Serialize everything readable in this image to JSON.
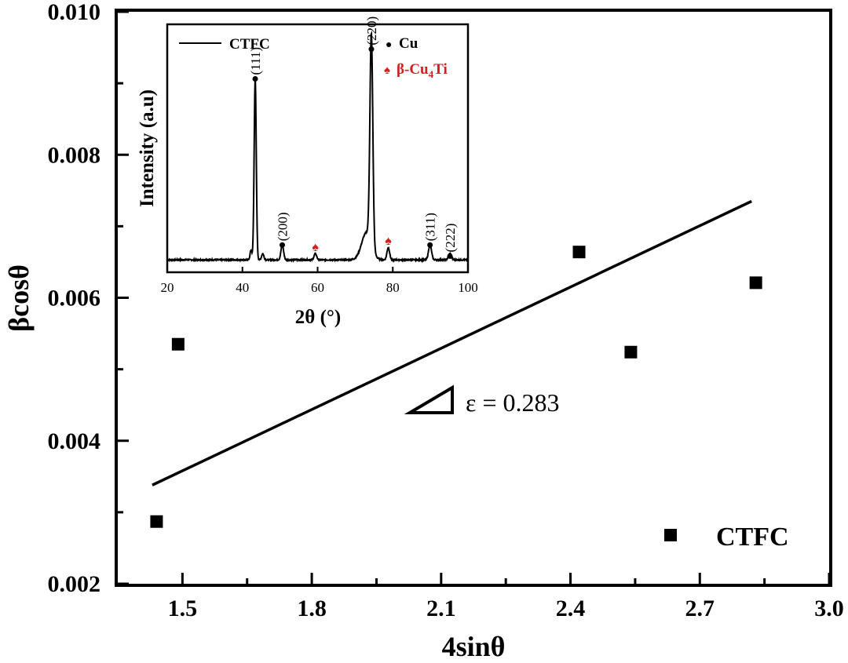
{
  "chart_data": [
    {
      "type": "scatter",
      "title": "",
      "xlabel": "4sinθ",
      "ylabel": "βcosθ",
      "xlim": [
        1.35,
        3.0
      ],
      "ylim": [
        0.002,
        0.01
      ],
      "xticks": [
        1.5,
        1.8,
        2.1,
        2.4,
        2.7,
        3.0
      ],
      "xtick_labels": [
        "1.5",
        "1.8",
        "2.1",
        "2.4",
        "2.7",
        "3.0"
      ],
      "yticks": [
        0.002,
        0.004,
        0.006,
        0.008,
        0.01
      ],
      "ytick_labels": [
        "0.002",
        "0.004",
        "0.006",
        "0.008",
        "0.010"
      ],
      "series": [
        {
          "name": "CTFC",
          "marker": "square",
          "points": [
            {
              "x": 1.44,
              "y": 0.00287
            },
            {
              "x": 1.49,
              "y": 0.00535
            },
            {
              "x": 2.42,
              "y": 0.00664
            },
            {
              "x": 2.54,
              "y": 0.00524
            },
            {
              "x": 2.83,
              "y": 0.00621
            }
          ]
        }
      ],
      "fit_line": {
        "x": [
          1.43,
          2.82
        ],
        "y": [
          0.00338,
          0.00735
        ]
      },
      "annotation": "ε = 0.283",
      "legend": {
        "label": "CTFC",
        "position": "bottom-right"
      }
    },
    {
      "type": "line",
      "role": "inset",
      "xlabel": "2θ (°)",
      "ylabel": "Intensity (a.u)",
      "xlim": [
        20,
        100
      ],
      "xticks": [
        20,
        40,
        60,
        80,
        100
      ],
      "xtick_labels": [
        "20",
        "40",
        "60",
        "80",
        "100"
      ],
      "series_name": "CTFC",
      "intensity_range": [
        0,
        100
      ],
      "baseline": 5,
      "peaks": [
        {
          "x": 42.3,
          "height": 4,
          "width": 0.25
        },
        {
          "x": 43.4,
          "height": 73,
          "width": 0.28
        },
        {
          "x": 45.4,
          "height": 2.5,
          "width": 0.3
        },
        {
          "x": 50.6,
          "height": 6,
          "width": 0.35
        },
        {
          "x": 59.4,
          "height": 2.5,
          "width": 0.35
        },
        {
          "x": 73.0,
          "height": 11,
          "width": 1.3
        },
        {
          "x": 74.3,
          "height": 85,
          "width": 0.38
        },
        {
          "x": 78.8,
          "height": 5,
          "width": 0.35
        },
        {
          "x": 89.9,
          "height": 6,
          "width": 0.4
        },
        {
          "x": 95.2,
          "height": 2.5,
          "width": 0.4
        }
      ],
      "peak_labels": [
        {
          "text": "(111)",
          "x": 43.4,
          "y": 78,
          "phase": "Cu"
        },
        {
          "text": "(200)",
          "x": 50.6,
          "y": 11,
          "phase": "Cu"
        },
        {
          "text": "(220)",
          "x": 74.3,
          "y": 90,
          "phase": "Cu"
        },
        {
          "text": "(311)",
          "x": 89.9,
          "y": 11,
          "phase": "Cu"
        },
        {
          "text": "(222)",
          "x": 95.2,
          "y": 6.5,
          "phase": "Cu"
        }
      ],
      "phase_markers": [
        {
          "x": 59.4,
          "y": 8.5,
          "phase": "β-Cu4Ti"
        },
        {
          "x": 78.8,
          "y": 11,
          "phase": "β-Cu4Ti"
        }
      ],
      "legend": {
        "series": "CTFC",
        "phases": [
          {
            "symbol": "●",
            "name": "Cu",
            "color": "#000000"
          },
          {
            "symbol": "♠",
            "name_parts": [
              "β-Cu",
              "4",
              "Ti"
            ],
            "color": "#d41e1e"
          }
        ]
      }
    }
  ]
}
